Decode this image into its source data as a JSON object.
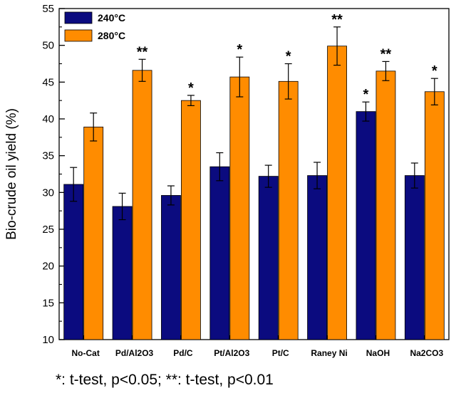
{
  "chart_data": {
    "type": "bar",
    "ylabel": "Bio-crude oil yield (%)",
    "ylim": [
      10,
      55
    ],
    "yticks": [
      10,
      15,
      20,
      25,
      30,
      35,
      40,
      45,
      50,
      55
    ],
    "grid": false,
    "legend_position": "top-left",
    "categories": [
      "No-Cat",
      "Pd/Al2O3",
      "Pd/C",
      "Pt/Al2O3",
      "Pt/C",
      "Raney Ni",
      "NaOH",
      "Na2CO3"
    ],
    "series": [
      {
        "name": "240°C",
        "color": "#0b0b7f",
        "values": [
          31.1,
          28.1,
          29.6,
          33.5,
          32.2,
          32.3,
          41.0,
          32.3
        ],
        "errors": [
          2.3,
          1.8,
          1.3,
          1.9,
          1.5,
          1.8,
          1.3,
          1.7
        ],
        "significance": [
          "",
          "",
          "",
          "",
          "",
          "",
          "*",
          ""
        ]
      },
      {
        "name": "280°C",
        "color": "#ff8c00",
        "values": [
          38.9,
          46.6,
          42.5,
          45.7,
          45.1,
          49.9,
          46.5,
          43.7
        ],
        "errors": [
          1.9,
          1.5,
          0.7,
          2.7,
          2.4,
          2.6,
          1.3,
          1.8
        ],
        "significance": [
          "",
          "**",
          "*",
          "*",
          "*",
          "**",
          "**",
          "*"
        ]
      }
    ]
  },
  "footnote": "*: t-test, p<0.05; **: t-test, p<0.01"
}
